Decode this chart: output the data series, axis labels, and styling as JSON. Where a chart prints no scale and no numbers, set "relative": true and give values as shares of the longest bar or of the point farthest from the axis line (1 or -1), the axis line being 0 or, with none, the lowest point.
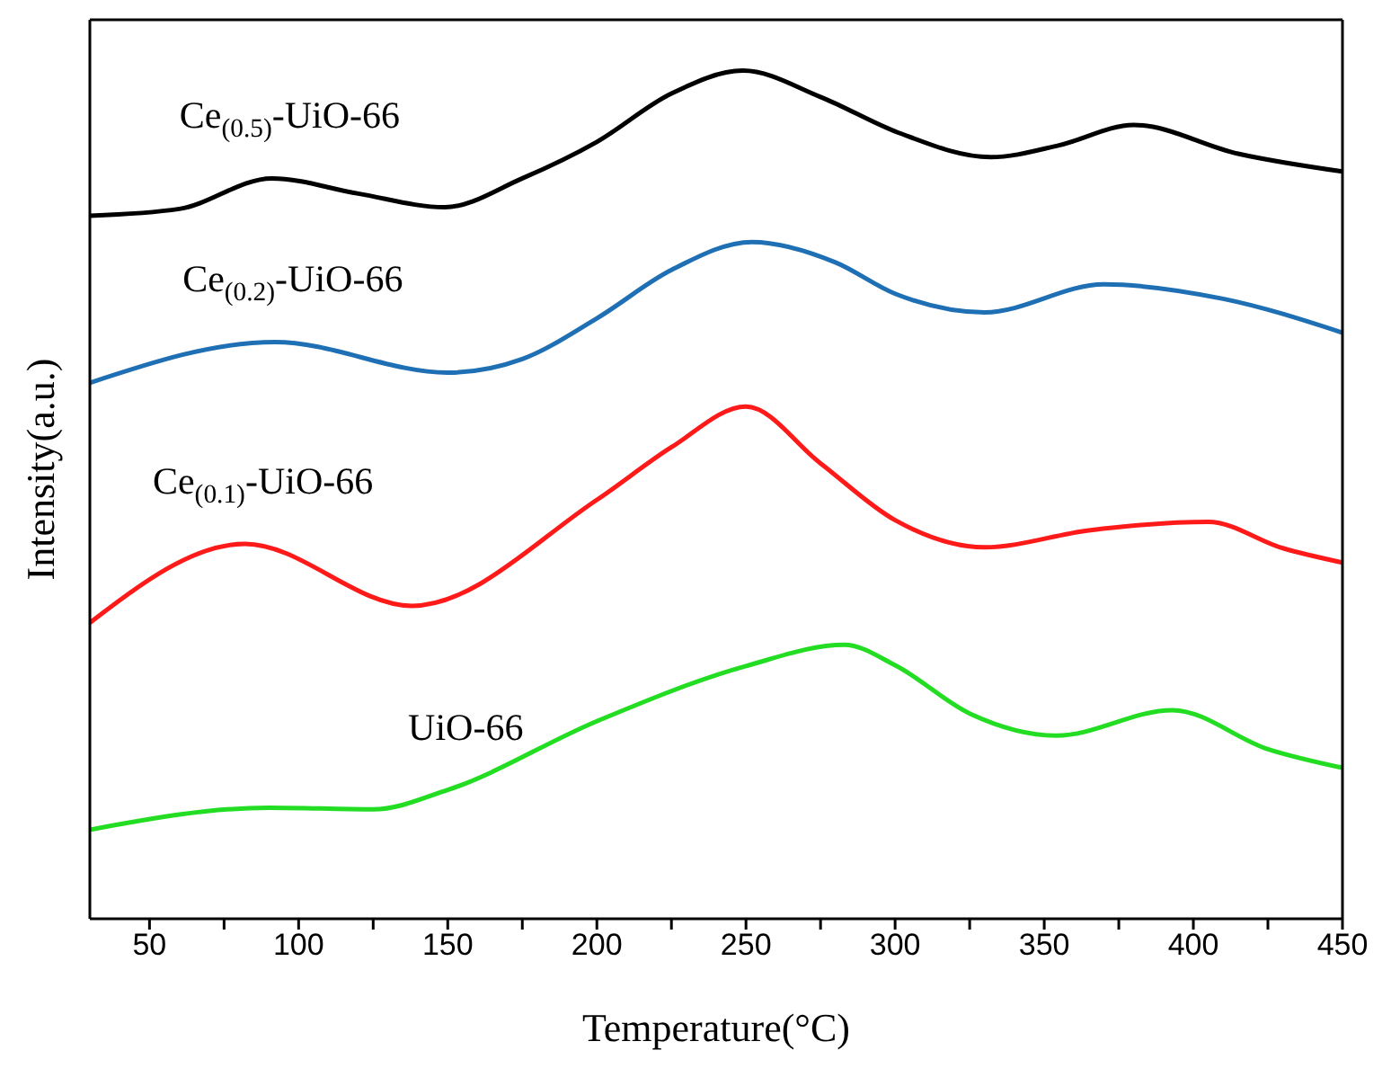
{
  "chart_data": {
    "type": "line",
    "relative": true,
    "xlabel": "Temperature(°C)",
    "ylabel": "Intensity(a.u.)",
    "xlim": [
      30,
      450
    ],
    "xticks": [
      50,
      {
        "value": 75,
        "label": null
      },
      100,
      {
        "value": 125,
        "label": null
      },
      150,
      {
        "value": 175,
        "label": null
      },
      200,
      {
        "value": 225,
        "label": null
      },
      250,
      {
        "value": 275,
        "label": null
      },
      300,
      {
        "value": 325,
        "label": null
      },
      350,
      {
        "value": 375,
        "label": null
      },
      400,
      {
        "value": 425,
        "label": null
      },
      450
    ],
    "marker": "none",
    "line_style": "solid",
    "series": [
      {
        "name": "Ce$_{(0.5)}$-UiO-66",
        "color": "#000000",
        "x": [
          30,
          60,
          91,
          120,
          149,
          175,
          200,
          225,
          249,
          275,
          301,
          332,
          355,
          380,
          415,
          450
        ],
        "values": [
          0.829,
          0.837,
          0.873,
          0.855,
          0.839,
          0.873,
          0.916,
          0.973,
          1.0,
          0.969,
          0.927,
          0.898,
          0.912,
          0.936,
          0.902,
          0.881
        ]
      },
      {
        "name": "Ce$_{(0.2)}$-UiO-66",
        "color": "#1f6fb4",
        "x": [
          30,
          92,
          150,
          175,
          200,
          225,
          252,
          280,
          300,
          330,
          370,
          410,
          450
        ],
        "values": [
          0.632,
          0.68,
          0.644,
          0.66,
          0.708,
          0.765,
          0.798,
          0.774,
          0.737,
          0.715,
          0.748,
          0.731,
          0.691
        ]
      },
      {
        "name": "Ce$_{(0.1)}$-UiO-66",
        "color": "#ff1a1a",
        "x": [
          30,
          82,
          138,
          200,
          225,
          250,
          275,
          300,
          330,
          365,
          405,
          430,
          450
        ],
        "values": [
          0.349,
          0.442,
          0.369,
          0.494,
          0.556,
          0.604,
          0.537,
          0.47,
          0.438,
          0.458,
          0.468,
          0.437,
          0.42
        ]
      },
      {
        "name": "UiO-66",
        "color": "#22dd22",
        "x": [
          30,
          90,
          125,
          150,
          200,
          250,
          283,
          300,
          325,
          354,
          393,
          425,
          450
        ],
        "values": [
          0.105,
          0.131,
          0.129,
          0.152,
          0.233,
          0.298,
          0.323,
          0.299,
          0.242,
          0.216,
          0.246,
          0.2,
          0.178
        ]
      }
    ]
  }
}
